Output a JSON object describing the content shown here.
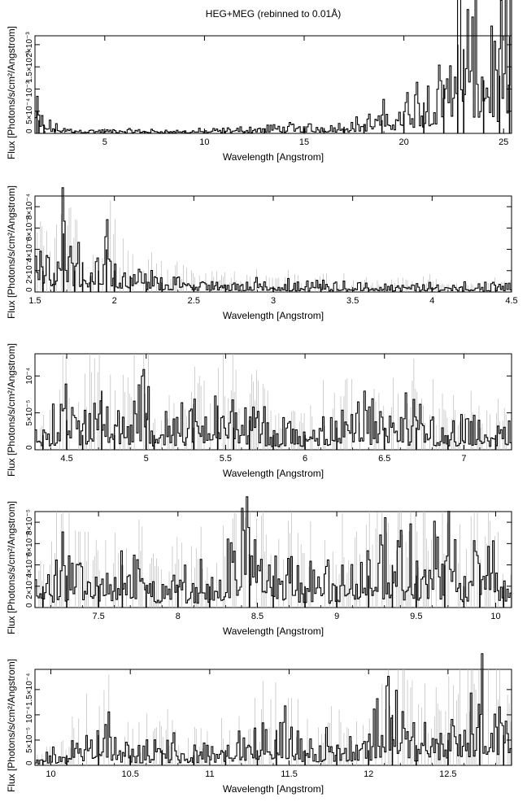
{
  "figure": {
    "title": "HEG+MEG (rebinned to 0.01Å)"
  },
  "chart_data": [
    {
      "type": "line",
      "title": "HEG+MEG (rebinned to 0.01Å)",
      "xlabel": "Wavelength [Angstrom]",
      "ylabel": "Flux [Photons/s/cm²/Angstrom]",
      "xlim": [
        1.5,
        25.4
      ],
      "ylim": [
        0,
        0.0022
      ],
      "x_ticks": [
        5,
        10,
        15,
        20,
        25
      ],
      "x_tick_labels": [
        "5",
        "10",
        "15",
        "20",
        "25"
      ],
      "y_ticks": [
        0,
        0.0005,
        0.001,
        0.0015,
        0.002
      ],
      "y_tick_labels": [
        "0",
        "5×10⁻⁴",
        "10⁻³",
        "1.5×10⁻³",
        "2×10⁻³"
      ],
      "series": [
        {
          "x": [
            1.6,
            1.7,
            1.95,
            2.5,
            3.5,
            5.0,
            7.0,
            9.0,
            11.0,
            13.0,
            15.0,
            16.0,
            17.0,
            18.0,
            18.9,
            20.0,
            21.0,
            22.0,
            22.7,
            23.0,
            24.0,
            24.8,
            25.3
          ],
          "y": [
            0.0005,
            0.0003,
            0.0002,
            0.0001,
            6e-05,
            5e-05,
            5e-05,
            4e-05,
            6e-05,
            0.0001,
            0.00012,
            0.00012,
            0.00015,
            0.0002,
            0.0003,
            0.00045,
            0.0007,
            0.0011,
            0.002,
            0.0019,
            0.0012,
            0.0013,
            0.0022
          ]
        }
      ]
    },
    {
      "type": "line",
      "xlabel": "Wavelength [Angstrom]",
      "ylabel": "Flux [Photons/s/cm²/Angstrom]",
      "xlim": [
        1.5,
        4.5
      ],
      "ylim": [
        0,
        0.0009
      ],
      "x_ticks": [
        1.5,
        2,
        2.5,
        3,
        3.5,
        4,
        4.5
      ],
      "x_tick_labels": [
        "1.5",
        "2",
        "2.5",
        "3",
        "3.5",
        "4",
        "4.5"
      ],
      "y_ticks": [
        0,
        0.0002,
        0.0004,
        0.0006,
        0.0008
      ],
      "y_tick_labels": [
        "0",
        "2×10⁻⁴",
        "4×10⁻⁴",
        "6×10⁻⁴",
        "8×10⁻⁴"
      ],
      "series": [
        {
          "x": [
            1.55,
            1.62,
            1.68,
            1.75,
            1.8,
            1.85,
            1.9,
            1.95,
            2.0,
            2.1,
            2.2,
            2.3,
            2.5,
            2.7,
            3.0,
            3.3,
            3.6,
            4.0,
            4.4
          ],
          "y": [
            0.0002,
            0.00018,
            0.00055,
            0.0002,
            0.00028,
            0.00015,
            0.0002,
            0.0004,
            0.0002,
            0.00015,
            0.0001,
            9e-05,
            7e-05,
            6e-05,
            5e-05,
            5e-05,
            4e-05,
            4e-05,
            4e-05
          ]
        }
      ]
    },
    {
      "type": "line",
      "xlabel": "Wavelength [Angstrom]",
      "ylabel": "Flux [Photons/s/cm²/Angstrom]",
      "xlim": [
        4.3,
        7.3
      ],
      "ylim": [
        0,
        0.00013
      ],
      "x_ticks": [
        4.5,
        5,
        5.5,
        6,
        6.5,
        7
      ],
      "x_tick_labels": [
        "4.5",
        "5",
        "5.5",
        "6",
        "6.5",
        "7"
      ],
      "y_ticks": [
        0,
        5e-05,
        0.0001
      ],
      "y_tick_labels": [
        "0",
        "5×10⁻⁵",
        "10⁻⁴"
      ],
      "series": [
        {
          "x": [
            4.35,
            4.5,
            4.6,
            4.72,
            4.8,
            5.0,
            5.05,
            5.3,
            5.45,
            5.55,
            5.65,
            5.8,
            6.0,
            6.2,
            6.5,
            6.7,
            6.9,
            7.2
          ],
          "y": [
            2e-05,
            4e-05,
            2e-05,
            8e-05,
            2e-05,
            5e-05,
            2e-05,
            3e-05,
            6e-05,
            3e-05,
            4e-05,
            2e-05,
            2e-05,
            3e-05,
            3e-05,
            3e-05,
            2e-05,
            2e-05
          ]
        }
      ]
    },
    {
      "type": "line",
      "xlabel": "Wavelength [Angstrom]",
      "ylabel": "Flux [Photons/s/cm²/Angstrom]",
      "xlim": [
        7.1,
        10.1
      ],
      "ylim": [
        0,
        9e-05
      ],
      "x_ticks": [
        7.5,
        8,
        8.5,
        9,
        9.5,
        10
      ],
      "x_tick_labels": [
        "7.5",
        "8",
        "8.5",
        "9",
        "9.5",
        "10"
      ],
      "y_ticks": [
        0,
        2e-05,
        4e-05,
        6e-05,
        8e-05
      ],
      "y_tick_labels": [
        "0",
        "2×10⁻⁵",
        "4×10⁻⁵",
        "6×10⁻⁵",
        "8×10⁻⁵"
      ],
      "series": [
        {
          "x": [
            7.15,
            7.3,
            7.5,
            7.65,
            7.8,
            8.0,
            8.2,
            8.45,
            8.6,
            8.8,
            9.0,
            9.2,
            9.35,
            9.5,
            9.68,
            9.8,
            9.9,
            10.05
          ],
          "y": [
            2e-05,
            3e-05,
            2e-05,
            4e-05,
            2e-05,
            2e-05,
            2e-05,
            5e-05,
            3e-05,
            2e-05,
            2e-05,
            3e-05,
            4e-05,
            3e-05,
            4e-05,
            2e-05,
            4e-05,
            2e-05
          ]
        }
      ]
    },
    {
      "type": "line",
      "xlabel": "Wavelength [Angstrom]",
      "ylabel": "Flux [Photons/s/cm²/Angstrom]",
      "xlim": [
        9.9,
        12.9
      ],
      "ylim": [
        0,
        0.00019
      ],
      "x_ticks": [
        10,
        10.5,
        11,
        11.5,
        12,
        12.5
      ],
      "x_tick_labels": [
        "10",
        "10.5",
        "11",
        "11.5",
        "12",
        "12.5"
      ],
      "y_ticks": [
        0,
        5e-05,
        0.0001,
        0.00015
      ],
      "y_tick_labels": [
        "0",
        "5×10⁻⁵",
        "10⁻⁴",
        "1.5×10⁻⁴"
      ],
      "series": [
        {
          "x": [
            9.95,
            10.1,
            10.3,
            10.5,
            10.7,
            10.9,
            11.1,
            11.3,
            11.42,
            11.6,
            11.8,
            12.0,
            12.15,
            12.3,
            12.5,
            12.7,
            12.85
          ],
          "y": [
            1e-05,
            2e-05,
            6e-05,
            2e-05,
            3e-05,
            2e-05,
            3e-05,
            3e-05,
            7e-05,
            3e-05,
            4e-05,
            3e-05,
            0.0001,
            4e-05,
            5e-05,
            0.0001,
            6e-05
          ]
        }
      ]
    }
  ]
}
